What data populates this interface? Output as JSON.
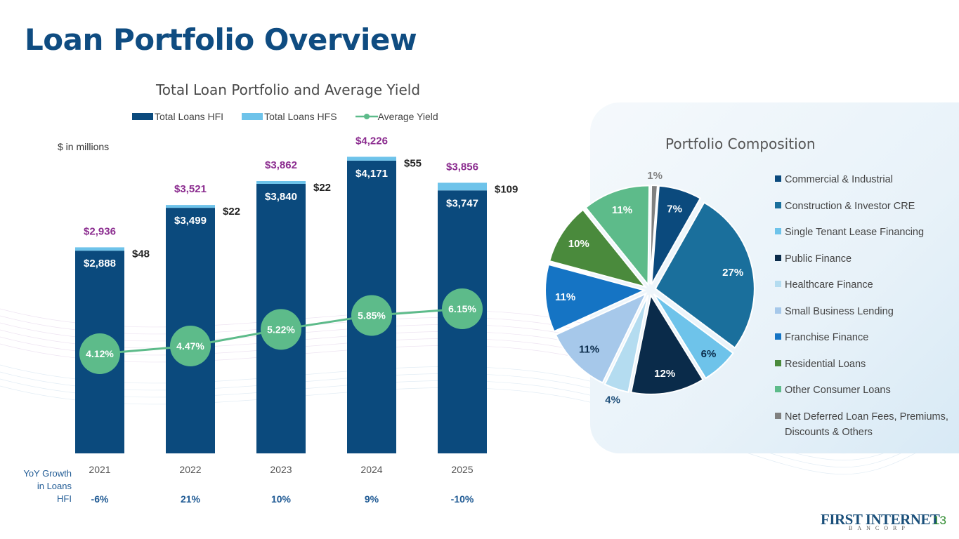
{
  "title": "Loan Portfolio Overview",
  "units_note": "$ in millions",
  "yoy_label": "YoY Growth in Loans HFI",
  "page_number": "13",
  "logo": {
    "main": "FIRST INTERNET",
    "sub": "BANCORP"
  },
  "chart_data": [
    {
      "type": "bar",
      "title": "Total Loan Portfolio and Average Yield",
      "stacked": true,
      "categories": [
        "2021",
        "2022",
        "2023",
        "2024",
        "2025"
      ],
      "series": [
        {
          "name": "Total Loans HFI",
          "color": "#0b4a7d",
          "values": [
            2888,
            3499,
            3840,
            4171,
            3747
          ],
          "labels": [
            "$2,888",
            "$3,499",
            "$3,840",
            "$4,171",
            "$3,747"
          ]
        },
        {
          "name": "Total Loans HFS",
          "color": "#6ec3ea",
          "values": [
            48,
            22,
            22,
            55,
            109
          ],
          "labels": [
            "$48",
            "$22",
            "$22",
            "$55",
            "$109"
          ]
        },
        {
          "name": "Average Yield",
          "color": "#5dbb8a",
          "type": "line",
          "values": [
            4.12,
            4.47,
            5.22,
            5.85,
            6.15
          ],
          "labels": [
            "4.12%",
            "4.47%",
            "5.22%",
            "5.85%",
            "6.15%"
          ]
        }
      ],
      "totals": [
        2936,
        3521,
        3862,
        4226,
        3856
      ],
      "total_labels": [
        "$2,936",
        "$3,521",
        "$3,862",
        "$4,226",
        "$3,856"
      ],
      "total_color": "#8b2c8f",
      "yoy_growth": [
        "-6%",
        "21%",
        "10%",
        "9%",
        "-10%"
      ],
      "ylim": [
        0,
        4500
      ],
      "yield_ylim": [
        0,
        10
      ]
    },
    {
      "type": "pie",
      "title": "Portfolio Composition",
      "slices": [
        {
          "name": "Commercial & Industrial",
          "value": 7,
          "label": "7%",
          "color": "#0b4a7d"
        },
        {
          "name": "Construction & Investor CRE",
          "value": 27,
          "label": "27%",
          "color": "#1a6f9c"
        },
        {
          "name": "Single Tenant Lease Financing",
          "value": 6,
          "label": "6%",
          "color": "#6ec3ea"
        },
        {
          "name": "Public Finance",
          "value": 12,
          "label": "12%",
          "color": "#0a2b4a"
        },
        {
          "name": "Healthcare Finance",
          "value": 4,
          "label": "4%",
          "color": "#b4dcf0"
        },
        {
          "name": "Small Business Lending",
          "value": 11,
          "label": "11%",
          "color": "#a6c8ea"
        },
        {
          "name": "Franchise Finance",
          "value": 11,
          "label": "11%",
          "color": "#1574c4"
        },
        {
          "name": "Residential Loans",
          "value": 10,
          "label": "10%",
          "color": "#4a8a3c"
        },
        {
          "name": "Other Consumer Loans",
          "value": 11,
          "label": "11%",
          "color": "#5dbb8a"
        },
        {
          "name": "Net Deferred Loan Fees, Premiums, Discounts & Others",
          "value": 1,
          "label": "1%",
          "color": "#808080"
        }
      ]
    }
  ]
}
